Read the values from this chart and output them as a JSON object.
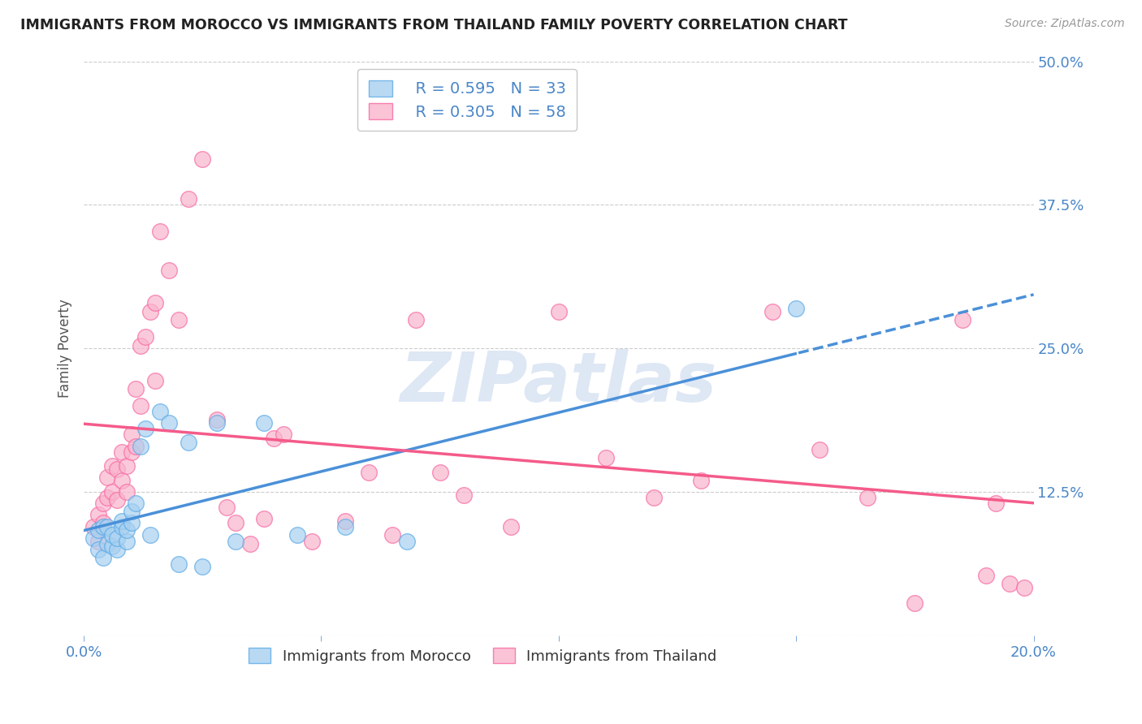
{
  "title": "IMMIGRANTS FROM MOROCCO VS IMMIGRANTS FROM THAILAND FAMILY POVERTY CORRELATION CHART",
  "source": "Source: ZipAtlas.com",
  "ylabel": "Family Poverty",
  "xlim": [
    0.0,
    0.2
  ],
  "ylim": [
    0.0,
    0.5
  ],
  "xticks": [
    0.0,
    0.05,
    0.1,
    0.15,
    0.2
  ],
  "xtick_labels": [
    "0.0%",
    "",
    "",
    "",
    "20.0%"
  ],
  "yticks": [
    0.0,
    0.125,
    0.25,
    0.375,
    0.5
  ],
  "ytick_labels": [
    "",
    "12.5%",
    "25.0%",
    "37.5%",
    "50.0%"
  ],
  "morocco_R": 0.595,
  "morocco_N": 33,
  "thailand_R": 0.305,
  "thailand_N": 58,
  "morocco_color": "#a8d0f0",
  "thailand_color": "#f9b4cc",
  "morocco_edge_color": "#5baae7",
  "thailand_edge_color": "#f768a1",
  "morocco_line_color": "#4a90d9",
  "thailand_line_color": "#f45b8a",
  "background_color": "#ffffff",
  "grid_color": "#cccccc",
  "axis_color": "#4a86c8",
  "watermark": "ZIPatlas",
  "morocco_x": [
    0.002,
    0.003,
    0.003,
    0.004,
    0.004,
    0.005,
    0.005,
    0.006,
    0.006,
    0.007,
    0.007,
    0.008,
    0.008,
    0.009,
    0.009,
    0.01,
    0.01,
    0.011,
    0.012,
    0.013,
    0.014,
    0.016,
    0.018,
    0.02,
    0.022,
    0.025,
    0.028,
    0.032,
    0.038,
    0.045,
    0.055,
    0.068,
    0.15
  ],
  "morocco_y": [
    0.085,
    0.075,
    0.092,
    0.068,
    0.095,
    0.08,
    0.095,
    0.078,
    0.088,
    0.075,
    0.085,
    0.095,
    0.1,
    0.082,
    0.092,
    0.098,
    0.108,
    0.115,
    0.165,
    0.18,
    0.088,
    0.195,
    0.185,
    0.062,
    0.168,
    0.06,
    0.185,
    0.082,
    0.185,
    0.088,
    0.095,
    0.082,
    0.285
  ],
  "thailand_x": [
    0.002,
    0.003,
    0.003,
    0.004,
    0.004,
    0.005,
    0.005,
    0.006,
    0.006,
    0.007,
    0.007,
    0.008,
    0.008,
    0.009,
    0.009,
    0.01,
    0.01,
    0.011,
    0.011,
    0.012,
    0.012,
    0.013,
    0.014,
    0.015,
    0.015,
    0.016,
    0.018,
    0.02,
    0.022,
    0.025,
    0.028,
    0.03,
    0.032,
    0.035,
    0.038,
    0.04,
    0.042,
    0.048,
    0.055,
    0.06,
    0.065,
    0.07,
    0.075,
    0.08,
    0.09,
    0.1,
    0.11,
    0.12,
    0.13,
    0.145,
    0.155,
    0.165,
    0.175,
    0.185,
    0.19,
    0.192,
    0.195,
    0.198
  ],
  "thailand_y": [
    0.095,
    0.082,
    0.105,
    0.115,
    0.098,
    0.12,
    0.138,
    0.125,
    0.148,
    0.118,
    0.145,
    0.135,
    0.16,
    0.125,
    0.148,
    0.16,
    0.175,
    0.165,
    0.215,
    0.2,
    0.252,
    0.26,
    0.282,
    0.29,
    0.222,
    0.352,
    0.318,
    0.275,
    0.38,
    0.415,
    0.188,
    0.112,
    0.098,
    0.08,
    0.102,
    0.172,
    0.175,
    0.082,
    0.1,
    0.142,
    0.088,
    0.275,
    0.142,
    0.122,
    0.095,
    0.282,
    0.155,
    0.12,
    0.135,
    0.282,
    0.162,
    0.12,
    0.028,
    0.275,
    0.052,
    0.115,
    0.045,
    0.042
  ]
}
